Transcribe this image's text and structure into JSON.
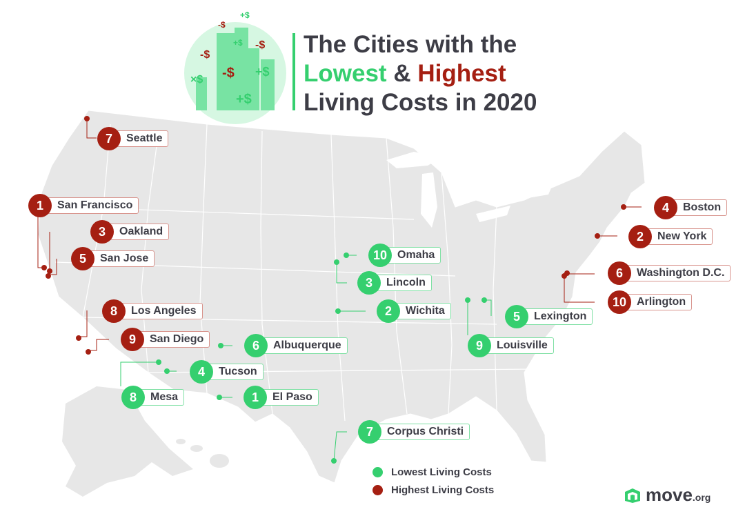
{
  "title": {
    "line1": "The Cities with the",
    "low_word": "Lowest",
    "amp": "&",
    "high_word": "Highest",
    "line3": "Living Costs in 2020"
  },
  "colors": {
    "low": "#35cf6f",
    "high": "#a51f12",
    "land": "#e7e7e7",
    "text": "#3d3d46"
  },
  "header_icon": {
    "name": "city-skyline-dollar-icon",
    "signs": [
      "-$",
      "-$",
      "-$",
      "-$",
      "+$",
      "+$",
      "+$",
      "+$"
    ]
  },
  "highest": [
    {
      "rank": "1",
      "city": "San Francisco"
    },
    {
      "rank": "2",
      "city": "New York"
    },
    {
      "rank": "3",
      "city": "Oakland"
    },
    {
      "rank": "4",
      "city": "Boston"
    },
    {
      "rank": "5",
      "city": "San Jose"
    },
    {
      "rank": "6",
      "city": "Washington D.C."
    },
    {
      "rank": "7",
      "city": "Seattle"
    },
    {
      "rank": "8",
      "city": "Los Angeles"
    },
    {
      "rank": "9",
      "city": "San Diego"
    },
    {
      "rank": "10",
      "city": "Arlington"
    }
  ],
  "lowest": [
    {
      "rank": "1",
      "city": "El Paso"
    },
    {
      "rank": "2",
      "city": "Wichita"
    },
    {
      "rank": "3",
      "city": "Lincoln"
    },
    {
      "rank": "4",
      "city": "Tucson"
    },
    {
      "rank": "5",
      "city": "Lexington"
    },
    {
      "rank": "6",
      "city": "Albuquerque"
    },
    {
      "rank": "7",
      "city": "Corpus Christi"
    },
    {
      "rank": "8",
      "city": "Mesa"
    },
    {
      "rank": "9",
      "city": "Louisville"
    },
    {
      "rank": "10",
      "city": "Omaha"
    }
  ],
  "legend": {
    "low": "Lowest Living Costs",
    "high": "Highest Living Costs"
  },
  "brand": {
    "name": "move",
    "tld": ".org",
    "icon": "move-logo-icon"
  }
}
